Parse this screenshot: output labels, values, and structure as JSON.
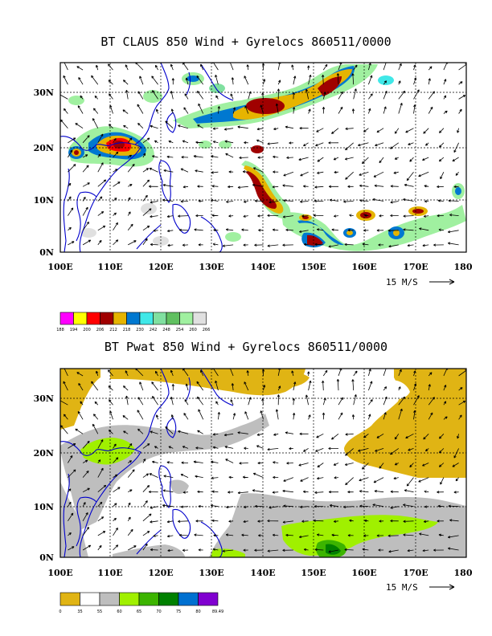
{
  "panels": [
    {
      "title": "BT CLAUS 850 Wind + Gyrelocs 860511/0000",
      "lat_labels": [
        "30N",
        "20N",
        "10N",
        "0N"
      ],
      "lon_labels": [
        "100E",
        "110E",
        "120E",
        "130E",
        "140E",
        "150E",
        "160E",
        "170E",
        "180"
      ],
      "vector_ref": "15 M/S",
      "colorbar": {
        "colors": [
          "#ff00ff",
          "#ffff00",
          "#ff0000",
          "#a00000",
          "#e6b400",
          "#0078d0",
          "#40e8e8",
          "#80e0a0",
          "#60c060",
          "#a0f0a0",
          "#e0e0e0"
        ],
        "labels": [
          "188",
          "194",
          "200",
          "206",
          "212",
          "218",
          "230",
          "242",
          "248",
          "254",
          "260",
          "266"
        ]
      }
    },
    {
      "title": "BT Pwat 850 Wind + Gyrelocs 860511/0000",
      "lat_labels": [
        "30N",
        "20N",
        "10N",
        "0N"
      ],
      "lon_labels": [
        "100E",
        "110E",
        "120E",
        "130E",
        "140E",
        "150E",
        "160E",
        "170E",
        "180"
      ],
      "vector_ref": "15 M/S",
      "colorbar": {
        "colors": [
          "#e0b414",
          "#ffffff",
          "#bebebe",
          "#a0f000",
          "#3cb400",
          "#008000",
          "#0070d0",
          "#8000d0"
        ],
        "labels": [
          "0",
          "35",
          "55",
          "60",
          "65",
          "70",
          "75",
          "80",
          "89.49"
        ]
      }
    }
  ]
}
